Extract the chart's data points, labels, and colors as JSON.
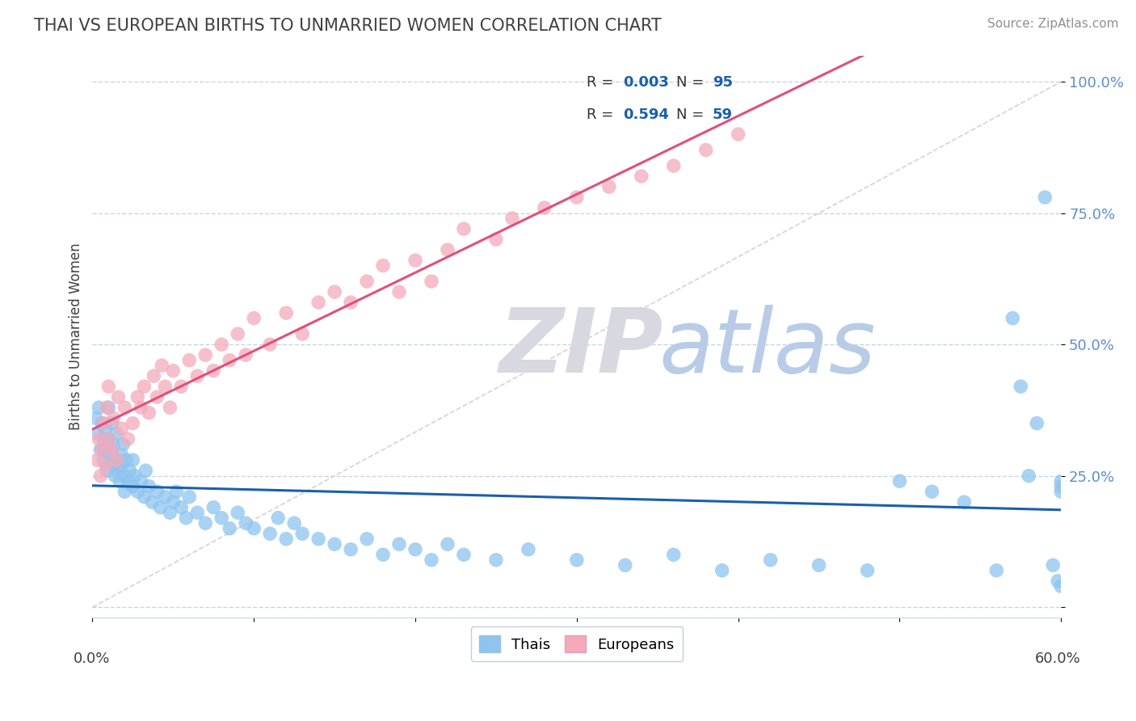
{
  "title": "THAI VS EUROPEAN BIRTHS TO UNMARRIED WOMEN CORRELATION CHART",
  "source": "Source: ZipAtlas.com",
  "ylabel": "Births to Unmarried Women",
  "yticks": [
    0.0,
    0.25,
    0.5,
    0.75,
    1.0
  ],
  "ytick_labels": [
    "",
    "25.0%",
    "50.0%",
    "75.0%",
    "100.0%"
  ],
  "xlim": [
    0.0,
    0.6
  ],
  "ylim": [
    -0.02,
    1.05
  ],
  "color_thai": "#8EC4EE",
  "color_european": "#F4AABB",
  "color_trendline_thai": "#1A5FAB",
  "color_trendline_european": "#E0507A",
  "color_diag": "#C8C8C8",
  "title_color": "#404040",
  "source_color": "#909090",
  "background_color": "#FFFFFF",
  "grid_color": "#C8D4E8",
  "watermark_zip_color": "#D8D8E0",
  "watermark_atlas_color": "#B8CCE8",
  "thai_x": [
    0.002,
    0.003,
    0.004,
    0.005,
    0.006,
    0.007,
    0.007,
    0.008,
    0.008,
    0.009,
    0.01,
    0.01,
    0.011,
    0.012,
    0.012,
    0.013,
    0.013,
    0.014,
    0.015,
    0.015,
    0.016,
    0.017,
    0.018,
    0.018,
    0.019,
    0.02,
    0.02,
    0.021,
    0.022,
    0.023,
    0.025,
    0.025,
    0.026,
    0.028,
    0.03,
    0.032,
    0.033,
    0.035,
    0.037,
    0.04,
    0.042,
    0.045,
    0.048,
    0.05,
    0.052,
    0.055,
    0.058,
    0.06,
    0.065,
    0.07,
    0.075,
    0.08,
    0.085,
    0.09,
    0.095,
    0.1,
    0.11,
    0.115,
    0.12,
    0.125,
    0.13,
    0.14,
    0.15,
    0.16,
    0.17,
    0.18,
    0.19,
    0.2,
    0.21,
    0.22,
    0.23,
    0.25,
    0.27,
    0.3,
    0.33,
    0.36,
    0.39,
    0.42,
    0.45,
    0.48,
    0.5,
    0.52,
    0.54,
    0.56,
    0.57,
    0.575,
    0.58,
    0.585,
    0.59,
    0.595,
    0.598,
    0.6,
    0.6,
    0.6,
    0.6
  ],
  "thai_y": [
    0.36,
    0.33,
    0.38,
    0.3,
    0.35,
    0.32,
    0.28,
    0.34,
    0.3,
    0.26,
    0.32,
    0.38,
    0.28,
    0.3,
    0.35,
    0.27,
    0.31,
    0.25,
    0.28,
    0.33,
    0.26,
    0.24,
    0.29,
    0.27,
    0.31,
    0.25,
    0.22,
    0.28,
    0.24,
    0.26,
    0.23,
    0.28,
    0.25,
    0.22,
    0.24,
    0.21,
    0.26,
    0.23,
    0.2,
    0.22,
    0.19,
    0.21,
    0.18,
    0.2,
    0.22,
    0.19,
    0.17,
    0.21,
    0.18,
    0.16,
    0.19,
    0.17,
    0.15,
    0.18,
    0.16,
    0.15,
    0.14,
    0.17,
    0.13,
    0.16,
    0.14,
    0.13,
    0.12,
    0.11,
    0.13,
    0.1,
    0.12,
    0.11,
    0.09,
    0.12,
    0.1,
    0.09,
    0.11,
    0.09,
    0.08,
    0.1,
    0.07,
    0.09,
    0.08,
    0.07,
    0.24,
    0.22,
    0.2,
    0.07,
    0.55,
    0.42,
    0.25,
    0.35,
    0.78,
    0.08,
    0.05,
    0.04,
    0.23,
    0.24,
    0.22
  ],
  "euro_x": [
    0.003,
    0.004,
    0.005,
    0.006,
    0.007,
    0.008,
    0.009,
    0.01,
    0.01,
    0.012,
    0.013,
    0.015,
    0.016,
    0.018,
    0.02,
    0.022,
    0.025,
    0.028,
    0.03,
    0.032,
    0.035,
    0.038,
    0.04,
    0.043,
    0.045,
    0.048,
    0.05,
    0.055,
    0.06,
    0.065,
    0.07,
    0.075,
    0.08,
    0.085,
    0.09,
    0.095,
    0.1,
    0.11,
    0.12,
    0.13,
    0.14,
    0.15,
    0.16,
    0.17,
    0.18,
    0.19,
    0.2,
    0.21,
    0.22,
    0.23,
    0.25,
    0.26,
    0.28,
    0.3,
    0.32,
    0.34,
    0.36,
    0.38,
    0.4
  ],
  "euro_y": [
    0.28,
    0.32,
    0.25,
    0.3,
    0.35,
    0.27,
    0.38,
    0.32,
    0.42,
    0.3,
    0.36,
    0.28,
    0.4,
    0.34,
    0.38,
    0.32,
    0.35,
    0.4,
    0.38,
    0.42,
    0.37,
    0.44,
    0.4,
    0.46,
    0.42,
    0.38,
    0.45,
    0.42,
    0.47,
    0.44,
    0.48,
    0.45,
    0.5,
    0.47,
    0.52,
    0.48,
    0.55,
    0.5,
    0.56,
    0.52,
    0.58,
    0.6,
    0.58,
    0.62,
    0.65,
    0.6,
    0.66,
    0.62,
    0.68,
    0.72,
    0.7,
    0.74,
    0.76,
    0.78,
    0.8,
    0.82,
    0.84,
    0.87,
    0.9
  ]
}
